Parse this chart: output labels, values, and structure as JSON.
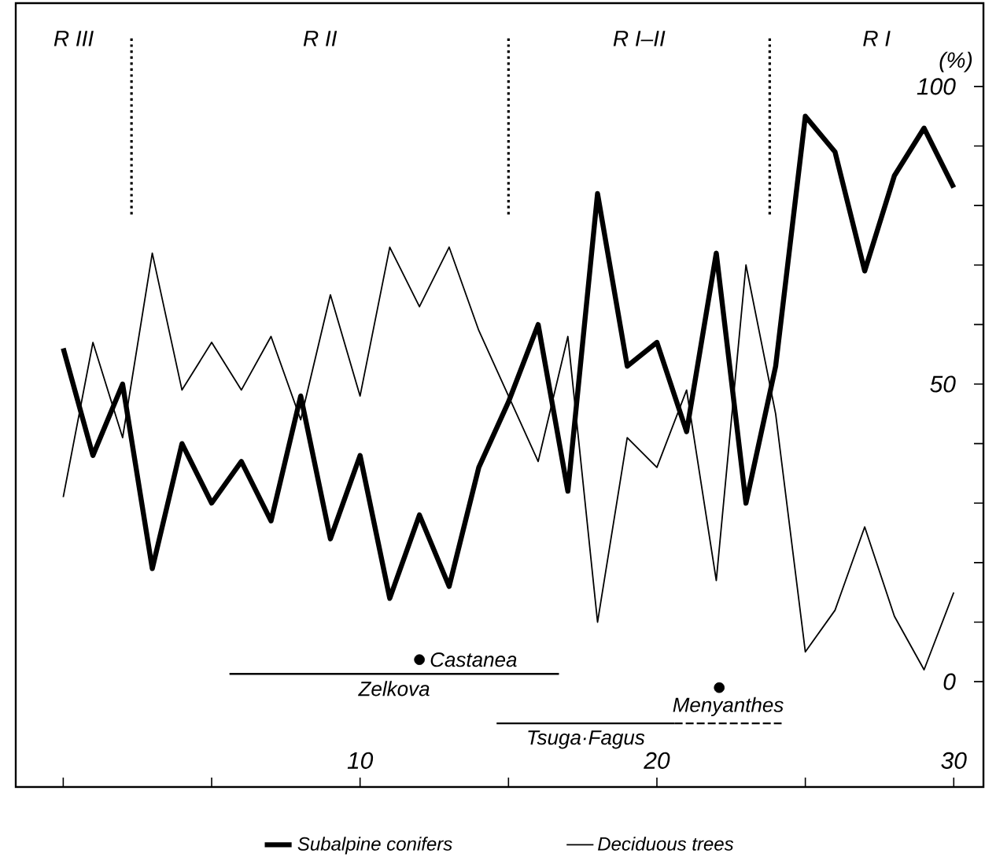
{
  "chart_data": {
    "type": "line",
    "ylabel": "(%)",
    "xlim": [
      -1.6,
      31
    ],
    "ylim": [
      -17.7,
      114
    ],
    "xticks": [
      {
        "value": 0,
        "label": null
      },
      {
        "value": 5,
        "label": null
      },
      10,
      {
        "value": 15,
        "label": null
      },
      20,
      {
        "value": 25,
        "label": null
      },
      30
    ],
    "yticks": [
      0,
      {
        "value": 10,
        "label": null
      },
      {
        "value": 20,
        "label": null
      },
      {
        "value": 30,
        "label": null
      },
      {
        "value": 40,
        "label": null
      },
      50,
      {
        "value": 60,
        "label": null
      },
      {
        "value": 70,
        "label": null
      },
      {
        "value": 80,
        "label": null
      },
      {
        "value": 90,
        "label": null
      },
      100
    ],
    "x": [
      0,
      1,
      2,
      3,
      4,
      5,
      6,
      7,
      8,
      9,
      10,
      11,
      12,
      13,
      14,
      15,
      16,
      17,
      18,
      19,
      20,
      21,
      22,
      23,
      24,
      25,
      26,
      27,
      28,
      29,
      30
    ],
    "series": [
      {
        "name": "Subalpine conifers",
        "color": "#000000",
        "values": [
          56,
          38,
          50,
          19,
          40,
          30,
          37,
          27,
          48,
          24,
          38,
          14,
          28,
          16,
          36,
          47,
          60,
          32,
          82,
          53,
          57,
          42,
          72,
          30,
          53,
          95,
          89,
          69,
          85,
          93,
          83
        ]
      },
      {
        "name": "Deciduous trees",
        "color": "#000000",
        "values": [
          31,
          57,
          41,
          72,
          49,
          57,
          49,
          58,
          44,
          65,
          48,
          73,
          63,
          73,
          59,
          48,
          37,
          58,
          10,
          41,
          36,
          49,
          17,
          70,
          45,
          5,
          12,
          26,
          11,
          2,
          15
        ]
      },
      {
        "name": "Zelkova",
        "type": "line",
        "color": "#000000",
        "x": [
          5.6,
          16.7
        ],
        "values": [
          1.3,
          1.3
        ]
      },
      {
        "name": "Castanea",
        "type": "scatter",
        "color": "#000000",
        "x": [
          12.0
        ],
        "values": [
          3.7
        ]
      },
      {
        "name": "Tsuga·Fagus",
        "type": "line",
        "color": "#000000",
        "x": [
          14.6,
          20.6
        ],
        "values": [
          -7,
          -7
        ]
      },
      {
        "type": "scatter",
        "color": "#000000",
        "x": [
          22.1
        ],
        "values": [
          -1
        ]
      },
      {
        "name": "Menyanthes",
        "type": "line",
        "line_style": "dashed",
        "color": "#000000",
        "x": [
          20.6,
          24.2
        ],
        "values": [
          -7,
          -7
        ]
      }
    ],
    "ref_lines": [
      {
        "axis": "x",
        "value": 2.3,
        "line_style": "dotted"
      },
      {
        "axis": "x",
        "value": 15,
        "line_style": "dotted"
      },
      {
        "axis": "x",
        "value": 23.8,
        "line_style": "dotted"
      }
    ],
    "annotations": [
      "R III",
      "R II",
      "R I–II",
      "R I"
    ],
    "legend": "bottom"
  }
}
